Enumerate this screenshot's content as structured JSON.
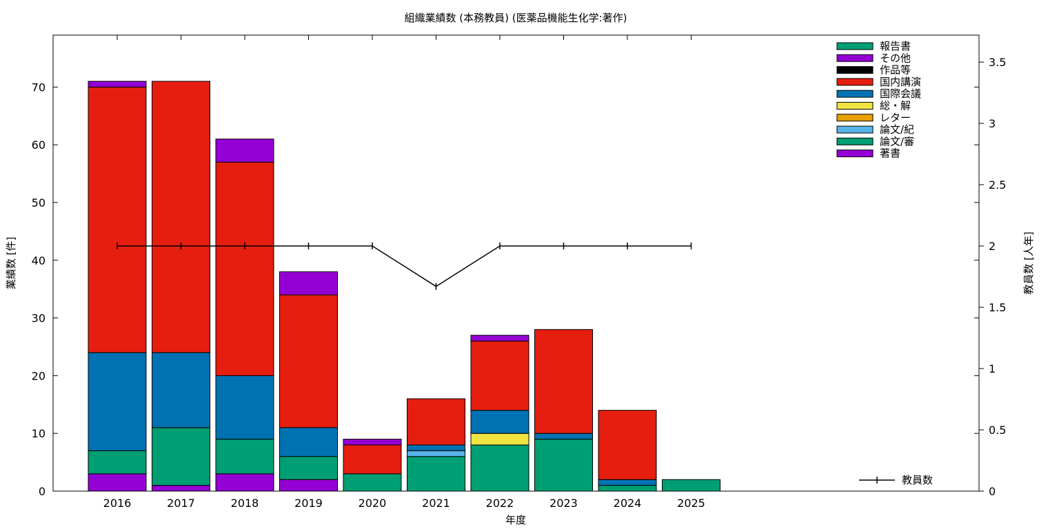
{
  "chart_data": {
    "type": "bar",
    "stacked": true,
    "title": "組織業績数 (本務教員) (医薬品機能生化学:著作)",
    "xlabel": "年度",
    "ylabel": "業績数 [件]",
    "y2label": "教員数 [人年]",
    "categories": [
      "2016",
      "2017",
      "2018",
      "2019",
      "2020",
      "2021",
      "2022",
      "2023",
      "2024",
      "2025"
    ],
    "ylim": [
      0,
      79
    ],
    "yticks": [
      0,
      10,
      20,
      30,
      40,
      50,
      60,
      70
    ],
    "y2lim": [
      0,
      3.72
    ],
    "y2ticks": [
      "0",
      "0.5",
      "1",
      "1.5",
      "2",
      "2.5",
      "3",
      "3.5"
    ],
    "grid": false,
    "legend_position": "top-right",
    "series": [
      {
        "name": "著書",
        "color": "#9400d3",
        "values": [
          3,
          1,
          3,
          2,
          0,
          0,
          0,
          0,
          0,
          0
        ]
      },
      {
        "name": "論文/審",
        "color": "#009e73",
        "values": [
          4,
          10,
          6,
          4,
          3,
          6,
          8,
          9,
          1,
          2
        ]
      },
      {
        "name": "論文/紀",
        "color": "#56b4e9",
        "values": [
          0,
          0,
          0,
          0,
          0,
          1,
          0,
          0,
          0,
          0
        ]
      },
      {
        "name": "レター",
        "color": "#e69f00",
        "values": [
          0,
          0,
          0,
          0,
          0,
          0,
          0,
          0,
          0,
          0
        ]
      },
      {
        "name": "総・解",
        "color": "#f0e442",
        "values": [
          0,
          0,
          0,
          0,
          0,
          0,
          2,
          0,
          0,
          0
        ]
      },
      {
        "name": "国際会議",
        "color": "#0072b2",
        "values": [
          17,
          13,
          11,
          5,
          0,
          1,
          4,
          1,
          1,
          0
        ]
      },
      {
        "name": "国内講演",
        "color": "#e51e10",
        "values": [
          46,
          47,
          37,
          23,
          5,
          8,
          12,
          18,
          12,
          0
        ]
      },
      {
        "name": "作品等",
        "color": "#000000",
        "values": [
          0,
          0,
          0,
          0,
          0,
          0,
          0,
          0,
          0,
          0
        ]
      },
      {
        "name": "その他",
        "color": "#9400d3",
        "values": [
          1,
          0,
          4,
          4,
          1,
          0,
          1,
          0,
          0,
          0
        ]
      },
      {
        "name": "報告書",
        "color": "#009e73",
        "values": [
          0,
          0,
          0,
          0,
          0,
          0,
          0,
          0,
          0,
          0
        ]
      }
    ],
    "line_series": {
      "name": "教員数",
      "color": "#000000",
      "axis": "right",
      "categories": [
        "2016",
        "2017",
        "2018",
        "2019",
        "2020",
        "2021",
        "2022",
        "2023",
        "2024",
        "2025"
      ],
      "values": [
        2,
        2,
        2,
        2,
        2,
        1.67,
        2,
        2,
        2,
        2
      ]
    }
  }
}
